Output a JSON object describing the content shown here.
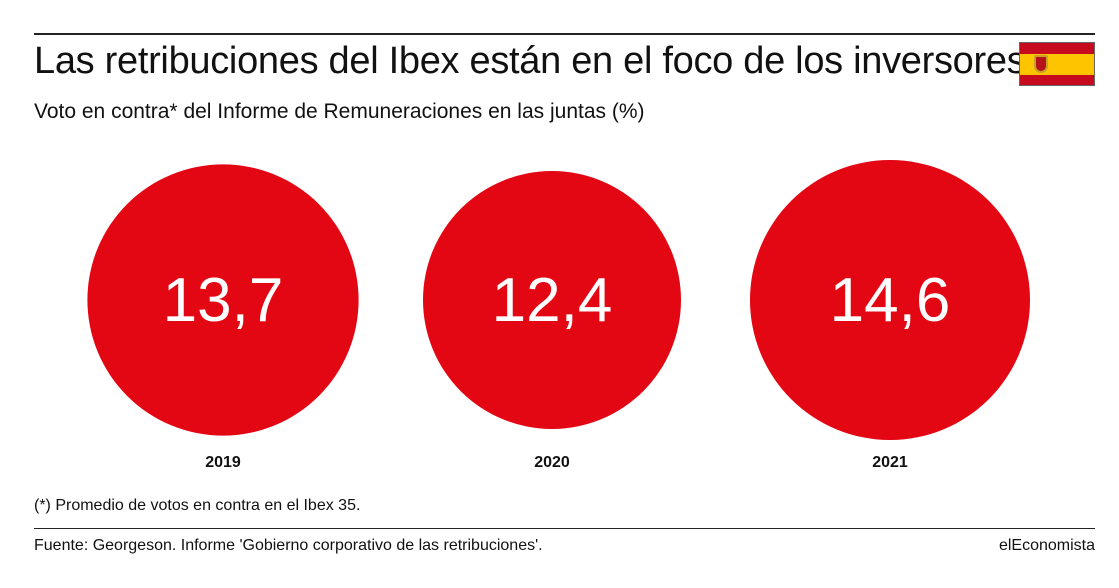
{
  "header": {
    "title": "Las retribuciones del Ibex están en el foco de los inversores",
    "subtitle": "Voto en contra* del Informe de Remuneraciones en las juntas (%)",
    "flag_icon": "spain-flag-icon"
  },
  "chart_data": {
    "type": "bubble",
    "categories": [
      "2019",
      "2020",
      "2021"
    ],
    "values": [
      13.7,
      12.4,
      14.6
    ],
    "value_labels": [
      "13,7",
      "12,4",
      "14,6"
    ],
    "bubble_color": "#e30613",
    "label_color": "#ffffff"
  },
  "footer": {
    "footnote": "(*) Promedio de votos en contra en el Ibex 35.",
    "source": "Fuente: Georgeson. Informe 'Gobierno corporativo de las retribuciones'.",
    "brand": "elEconomista"
  },
  "colors": {
    "flag_red": "#c60b1e",
    "flag_yellow": "#ffc400"
  }
}
